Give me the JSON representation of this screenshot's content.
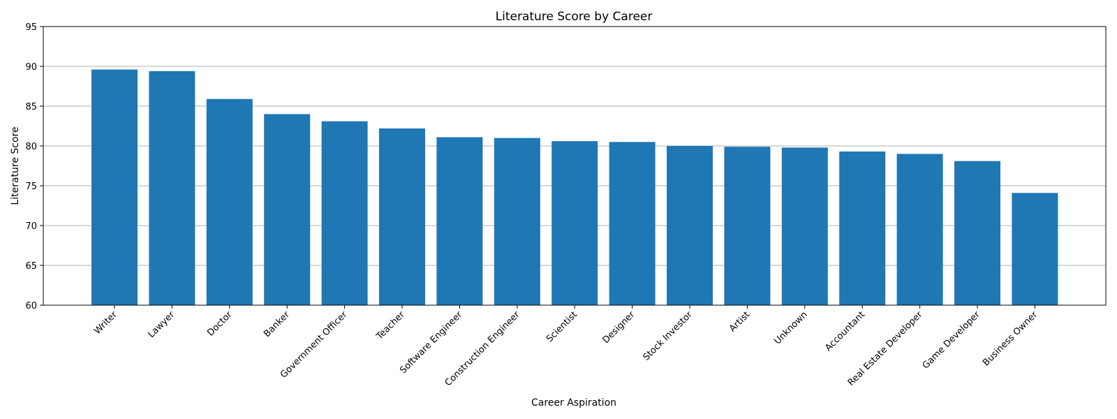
{
  "chart_data": {
    "type": "bar",
    "title": "Literature Score by Career",
    "xlabel": "Career Aspiration",
    "ylabel": "Literature Score",
    "ylim": [
      60,
      95
    ],
    "yticks": [
      60,
      65,
      70,
      75,
      80,
      85,
      90,
      95
    ],
    "grid": "y",
    "legend": "none",
    "categories": [
      "Writer",
      "Lawyer",
      "Doctor",
      "Banker",
      "Government Officer",
      "Teacher",
      "Software Engineer",
      "Construction Engineer",
      "Scientist",
      "Designer",
      "Stock Investor",
      "Artist",
      "Unknown",
      "Accountant",
      "Real Estate Developer",
      "Game Developer",
      "Business Owner"
    ],
    "values": [
      89.6,
      89.4,
      85.9,
      84.0,
      83.1,
      82.2,
      81.1,
      81.0,
      80.6,
      80.5,
      80.0,
      79.9,
      79.8,
      79.3,
      79.0,
      78.1,
      74.1
    ],
    "bar_color": "#1f77b4",
    "grid_color": "#b0b0b0"
  }
}
